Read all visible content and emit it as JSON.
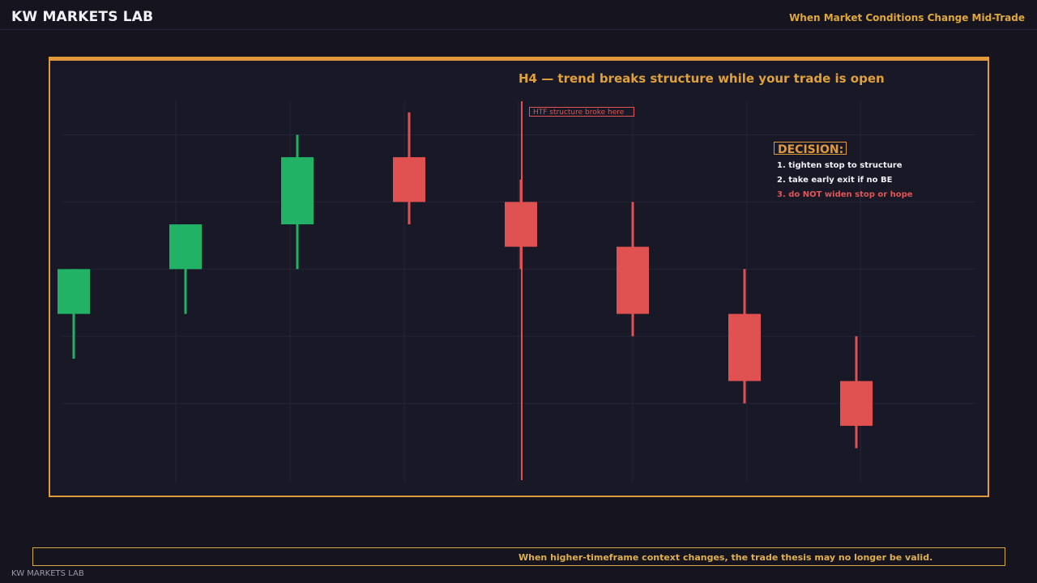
{
  "header": {
    "brand": "KW MARKETS LAB",
    "subtitle": "When Market Conditions Change Mid-Trade"
  },
  "panel": {
    "title": "H4 — trend breaks structure while your trade is open",
    "annotation": "HTF structure broke here",
    "decision": {
      "title": "DECISION:",
      "items": [
        "1. tighten stop to structure",
        "2. take early exit if no BE",
        "3. do NOT widen stop or hope"
      ]
    }
  },
  "footer": {
    "message": "When higher-timeframe context changes, the trade thesis may no longer be valid.",
    "watermark": "KW MARKETS LAB"
  },
  "colors": {
    "accent": "#e09a3a",
    "bull": "#22b266",
    "bear": "#e05252",
    "grid": "#24243a",
    "panel_bg": "#181827",
    "page_bg": "#15141f"
  },
  "chart_data": {
    "type": "candlestick",
    "title": "H4 — trend breaks structure while your trade is open",
    "xlabel": "",
    "ylabel": "",
    "ylim": [
      0,
      17
    ],
    "grid": true,
    "candles": [
      {
        "open": 7.5,
        "high": 9.5,
        "low": 5.5,
        "close": 9.5,
        "direction": "up"
      },
      {
        "open": 9.5,
        "high": 11.5,
        "low": 7.5,
        "close": 11.5,
        "direction": "up"
      },
      {
        "open": 11.5,
        "high": 15.5,
        "low": 9.5,
        "close": 14.5,
        "direction": "up"
      },
      {
        "open": 14.5,
        "high": 16.5,
        "low": 11.5,
        "close": 12.5,
        "direction": "down"
      },
      {
        "open": 12.5,
        "high": 13.5,
        "low": 9.5,
        "close": 10.5,
        "direction": "down"
      },
      {
        "open": 10.5,
        "high": 12.5,
        "low": 6.5,
        "close": 7.5,
        "direction": "down"
      },
      {
        "open": 7.5,
        "high": 9.5,
        "low": 3.5,
        "close": 4.5,
        "direction": "down"
      },
      {
        "open": 4.5,
        "high": 6.5,
        "low": 1.5,
        "close": 2.5,
        "direction": "down"
      }
    ],
    "structure_break_index": 4
  }
}
